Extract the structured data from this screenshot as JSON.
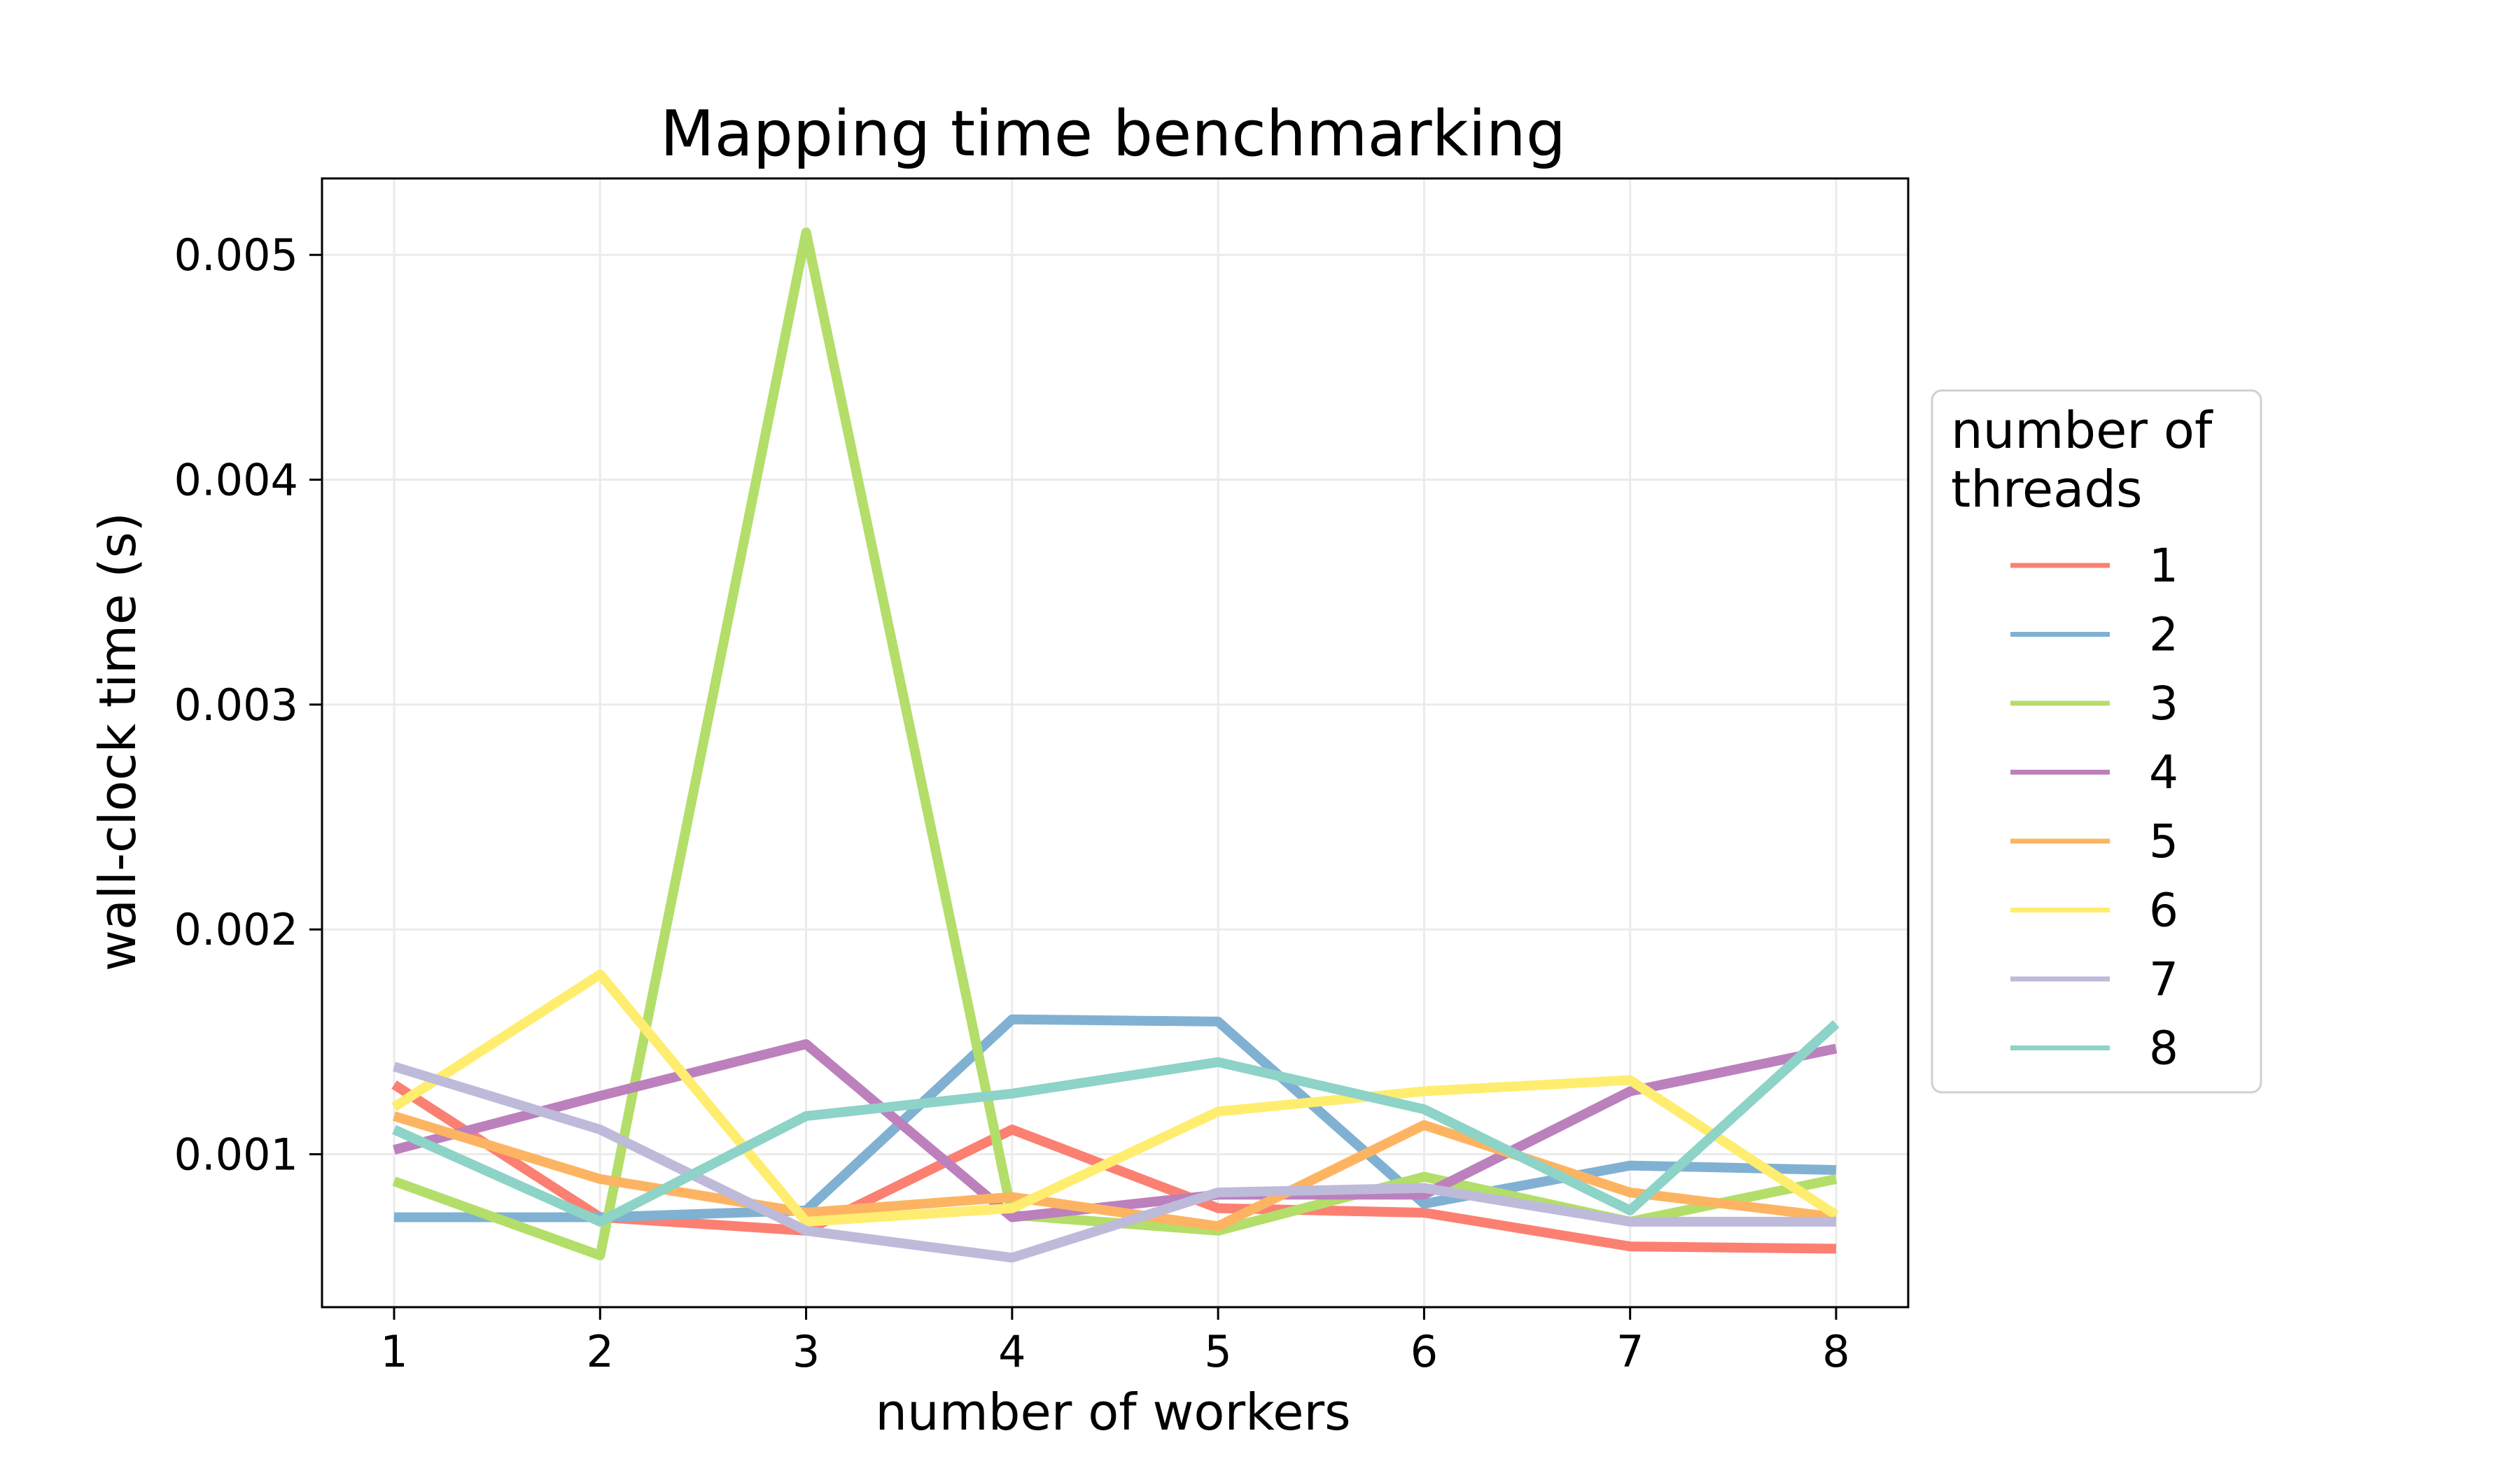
{
  "chart_data": {
    "type": "line",
    "title": "Mapping time benchmarking",
    "xlabel": "number of workers",
    "ylabel": "wall-clock time (s)",
    "x": [
      1,
      2,
      3,
      4,
      5,
      6,
      7,
      8
    ],
    "xticks": [
      "1",
      "2",
      "3",
      "4",
      "5",
      "6",
      "7",
      "8"
    ],
    "yticks": [
      0.001,
      0.002,
      0.003,
      0.004,
      0.005
    ],
    "ytick_labels": [
      "0.001",
      "0.002",
      "0.003",
      "0.004",
      "0.005"
    ],
    "xlim": [
      0.65,
      8.35
    ],
    "ylim": [
      0.00032,
      0.00534
    ],
    "grid": true,
    "legend": {
      "title_line1": "number of",
      "title_line2": "threads",
      "placement": "right, outside plot"
    },
    "series": [
      {
        "name": "1",
        "color": "#fb8072",
        "values": [
          0.00131,
          0.00072,
          0.00066,
          0.00111,
          0.00076,
          0.00074,
          0.00059,
          0.00058
        ]
      },
      {
        "name": "2",
        "color": "#80b1d3",
        "values": [
          0.00072,
          0.00072,
          0.00075,
          0.0016,
          0.00159,
          0.00078,
          0.00095,
          0.00093
        ]
      },
      {
        "name": "3",
        "color": "#b3de69",
        "values": [
          0.00088,
          0.00055,
          0.0051,
          0.00073,
          0.00066,
          0.0009,
          0.0007,
          0.00089
        ]
      },
      {
        "name": "4",
        "color": "#bc80bd",
        "values": [
          0.00102,
          0.00126,
          0.00149,
          0.00072,
          0.00082,
          0.00082,
          0.00128,
          0.00147
        ]
      },
      {
        "name": "5",
        "color": "#fdb462",
        "values": [
          0.00117,
          0.00089,
          0.00074,
          0.00081,
          0.00068,
          0.00113,
          0.00083,
          0.00072
        ]
      },
      {
        "name": "6",
        "color": "#ffed6f",
        "values": [
          0.00121,
          0.0018,
          0.0007,
          0.00076,
          0.00119,
          0.00128,
          0.00133,
          0.00073
        ]
      },
      {
        "name": "7",
        "color": "#bebada",
        "values": [
          0.00139,
          0.00111,
          0.00066,
          0.00054,
          0.00083,
          0.00085,
          0.0007,
          0.0007
        ]
      },
      {
        "name": "8",
        "color": "#8dd3c7",
        "values": [
          0.00111,
          0.0007,
          0.00117,
          0.00127,
          0.00141,
          0.0012,
          0.00075,
          0.00158
        ]
      }
    ]
  }
}
